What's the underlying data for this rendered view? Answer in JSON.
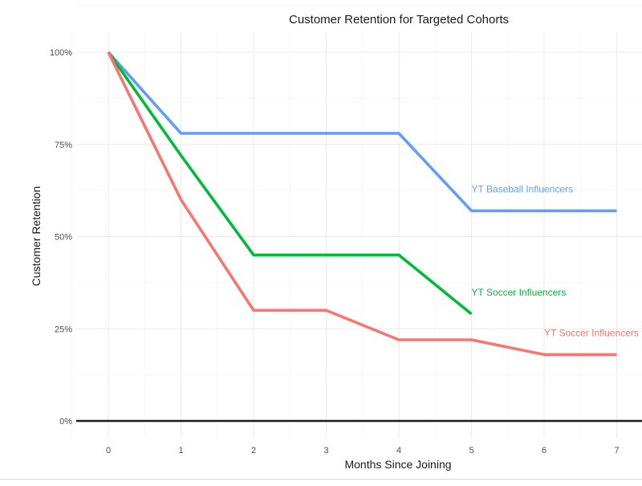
{
  "chart_data": {
    "type": "line",
    "title": "Customer Retention for Targeted Cohorts",
    "xlabel": "Months Since Joining",
    "ylabel": "Customer Retention",
    "x_ticks": [
      "0",
      "1",
      "2",
      "3",
      "4",
      "5",
      "6",
      "7"
    ],
    "y_ticks": [
      "0%",
      "25%",
      "50%",
      "75%",
      "100%"
    ],
    "xlim": [
      -0.45,
      7.3
    ],
    "ylim": [
      0,
      1
    ],
    "grid": true,
    "legend": "none (direct labels)",
    "series": [
      {
        "name": "YT Baseball Influencers",
        "color": "#619cff",
        "x": [
          0,
          1,
          2,
          3,
          4,
          5,
          6,
          7
        ],
        "y": [
          1.0,
          0.78,
          0.78,
          0.78,
          0.78,
          0.57,
          0.57,
          0.57
        ],
        "label_at": [
          5,
          0.62
        ]
      },
      {
        "name": "YT Soccer Influencers",
        "color": "#00ba38",
        "x": [
          0,
          1,
          2,
          3,
          4,
          5
        ],
        "y": [
          1.0,
          0.72,
          0.45,
          0.45,
          0.45,
          0.29
        ],
        "label_at": [
          5,
          0.34
        ]
      },
      {
        "name": "YT Soccer Influencers",
        "color": "#f8766d",
        "x": [
          0,
          1,
          2,
          3,
          4,
          5,
          6,
          7
        ],
        "y": [
          1.0,
          0.6,
          0.3,
          0.3,
          0.22,
          0.22,
          0.18,
          0.18
        ],
        "label_at": [
          6,
          0.23
        ]
      }
    ]
  }
}
